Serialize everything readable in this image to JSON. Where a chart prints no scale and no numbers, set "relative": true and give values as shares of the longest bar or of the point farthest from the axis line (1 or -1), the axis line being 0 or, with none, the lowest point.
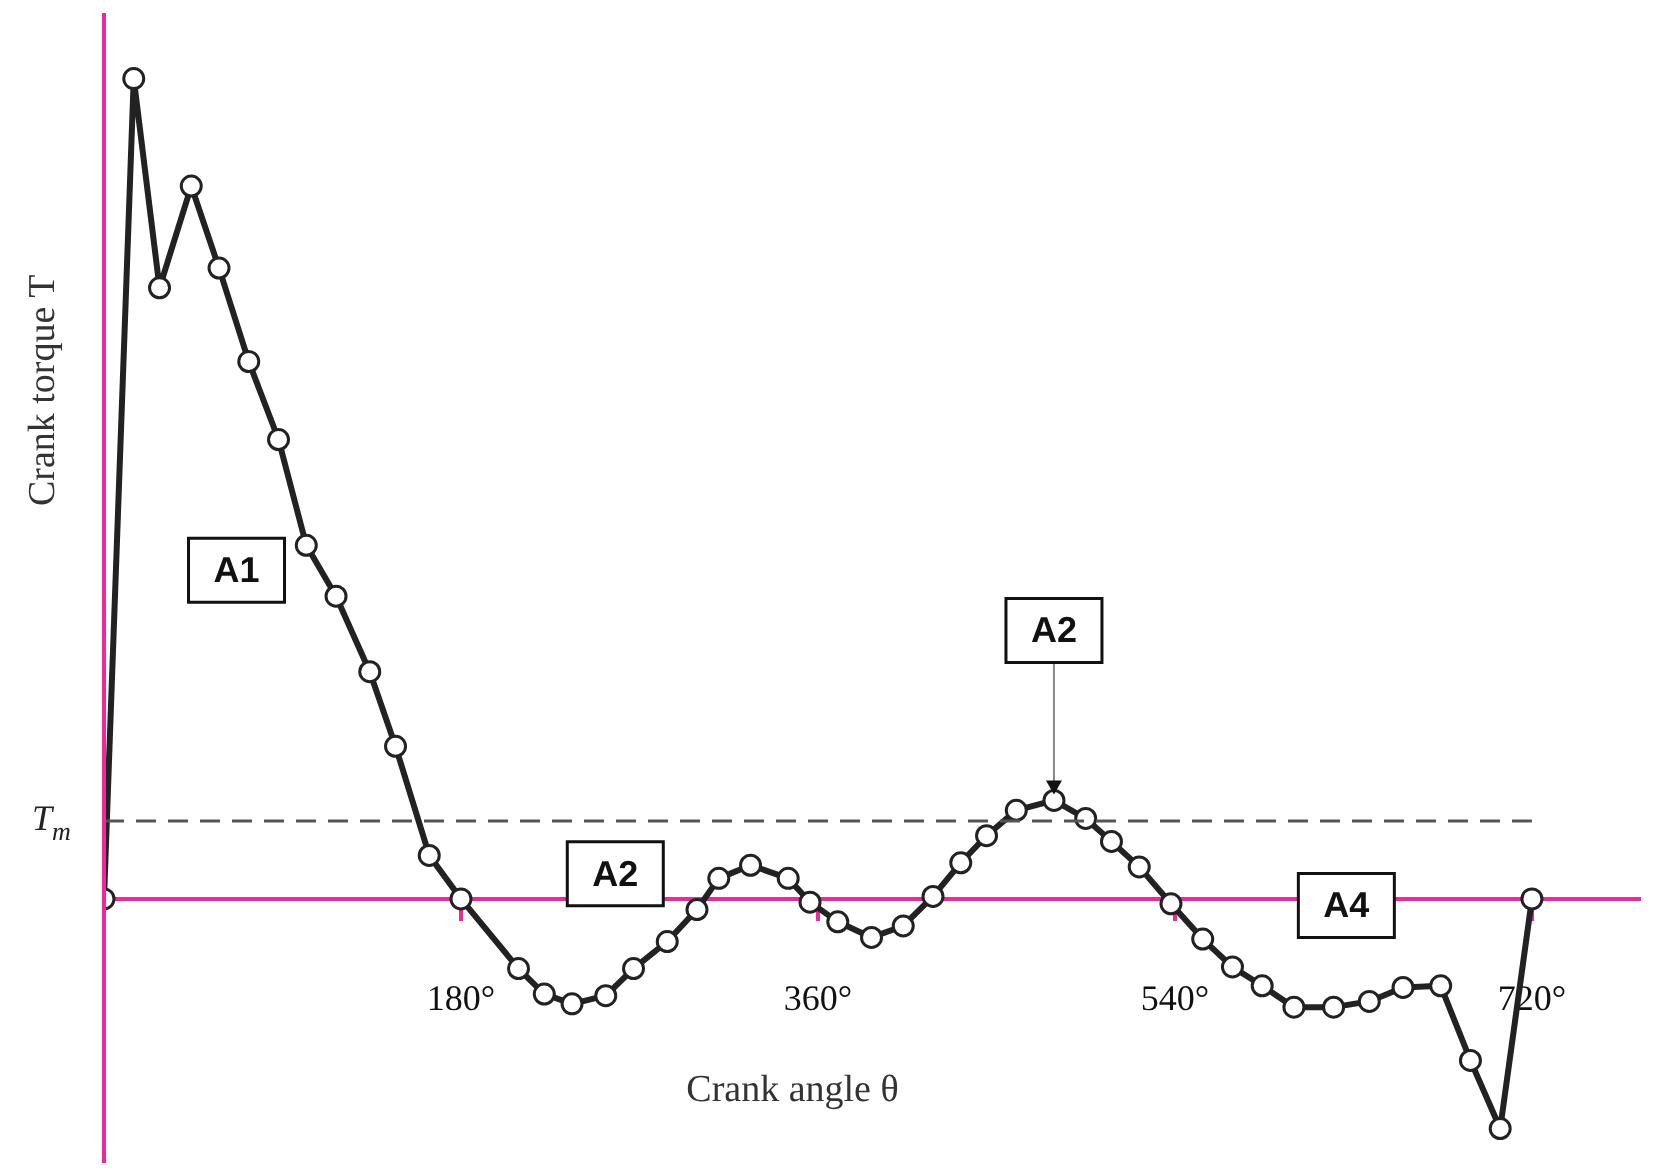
{
  "chart_data": {
    "type": "line",
    "relative": true,
    "xlabel": "Crank angle θ",
    "ylabel": "Crank torque T",
    "xlim": [
      0,
      775
    ],
    "xticks": [
      {
        "value": 0,
        "label": null
      },
      {
        "value": 180,
        "label": "180°"
      },
      {
        "value": 360,
        "label": "360°"
      },
      {
        "value": 540,
        "label": "540°"
      },
      {
        "value": 720,
        "label": "720°"
      }
    ],
    "grid": false,
    "legend": false,
    "marker": "circle",
    "line_style": "solid",
    "ref_lines": [
      {
        "axis": "y",
        "value": 0.095,
        "label": "T$_{m}$",
        "color": "#555555",
        "line_style": "dashed"
      }
    ],
    "annotations": [
      "A1",
      "A2",
      {
        "text": "A2",
        "x": 479,
        "y": 0.12
      },
      "A4"
    ],
    "series": [
      {
        "color": "#222222",
        "x": [
          0,
          15,
          28,
          44,
          58,
          73,
          88,
          102,
          117,
          134,
          147,
          164,
          180,
          209,
          222,
          236,
          253,
          267,
          284,
          299,
          310,
          326,
          345,
          356,
          370,
          387,
          403,
          418,
          432,
          445,
          460,
          479,
          495,
          508,
          522,
          538,
          554,
          569,
          584,
          600,
          620,
          638,
          655,
          674,
          689,
          704,
          720
        ],
        "values": [
          0,
          1,
          0.745,
          0.869,
          0.769,
          0.655,
          0.56,
          0.431,
          0.369,
          0.277,
          0.186,
          0.053,
          0,
          -0.085,
          -0.116,
          -0.128,
          -0.118,
          -0.085,
          -0.052,
          -0.013,
          0.025,
          0.041,
          0.025,
          -0.004,
          -0.028,
          -0.047,
          -0.033,
          0.003,
          0.044,
          0.077,
          0.108,
          0.12,
          0.098,
          0.07,
          0.039,
          -0.006,
          -0.049,
          -0.083,
          -0.106,
          -0.132,
          -0.132,
          -0.125,
          -0.108,
          -0.106,
          -0.197,
          -0.28,
          0
        ]
      }
    ]
  }
}
